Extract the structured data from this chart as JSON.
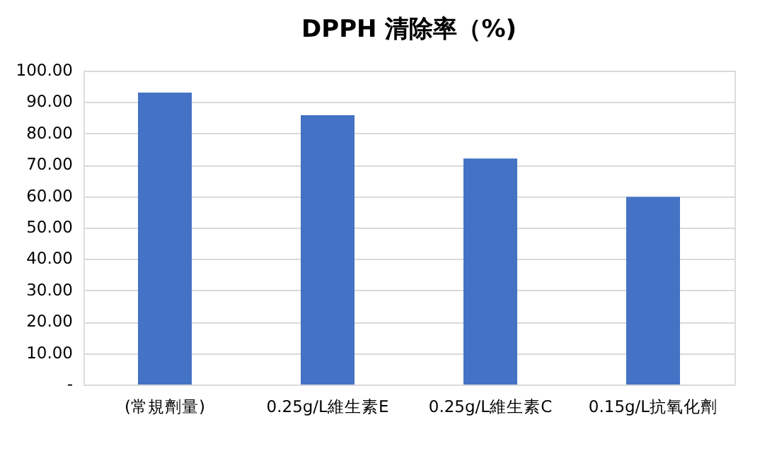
{
  "chart_data": {
    "type": "bar",
    "title": "DPPH 清除率（%)",
    "categories": [
      "(常規劑量)",
      "0.25g/L維生素E",
      "0.25g/L維生素C",
      "0.15g/L抗氧化劑"
    ],
    "values": [
      93,
      85.8,
      72,
      59.8
    ],
    "color": "#4472c4",
    "ylim": [
      0,
      100
    ],
    "yticks": [
      {
        "value": 0,
        "label": "-"
      },
      {
        "value": 10,
        "label": "10.00"
      },
      {
        "value": 20,
        "label": "20.00"
      },
      {
        "value": 30,
        "label": "30.00"
      },
      {
        "value": 40,
        "label": "40.00"
      },
      {
        "value": 50,
        "label": "50.00"
      },
      {
        "value": 60,
        "label": "60.00"
      },
      {
        "value": 70,
        "label": "70.00"
      },
      {
        "value": 80,
        "label": "80.00"
      },
      {
        "value": 90,
        "label": "90.00"
      },
      {
        "value": 100,
        "label": "100.00"
      }
    ],
    "grid": "y"
  }
}
